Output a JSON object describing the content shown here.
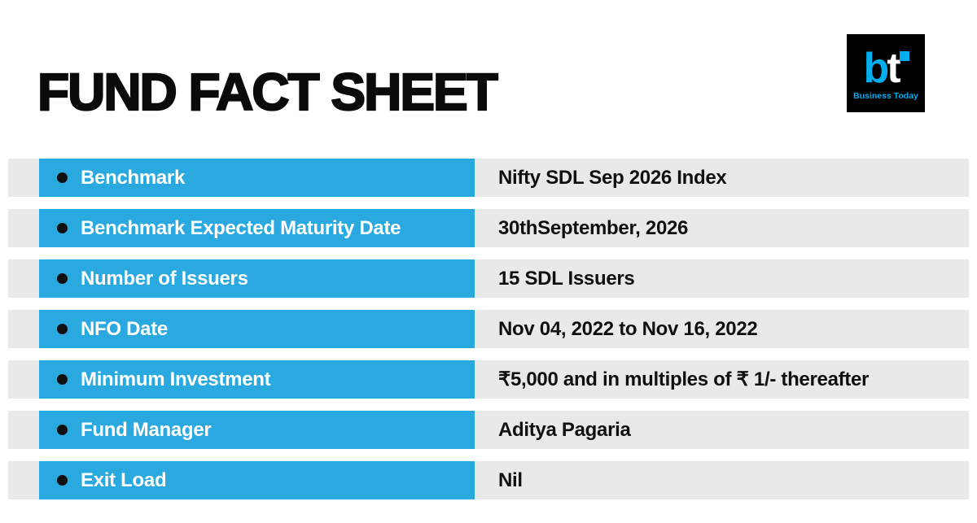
{
  "page": {
    "title": "FUND FACT SHEET"
  },
  "logo": {
    "b": "b",
    "t": "t",
    "subtext": "Business Today"
  },
  "colors": {
    "accent_blue": "#2AA9E0",
    "row_gray": "#E9E9E9",
    "logo_blue": "#00AEEF",
    "logo_background": "#000000",
    "title_black": "#0B0B0B"
  },
  "table": {
    "rows": [
      {
        "label": "Benchmark",
        "value": "Nifty SDL Sep 2026 Index"
      },
      {
        "label": "Benchmark Expected Maturity Date",
        "value": "30thSeptember, 2026"
      },
      {
        "label": "Number of Issuers",
        "value": "15 SDL Issuers"
      },
      {
        "label": "NFO Date",
        "value": "Nov 04, 2022 to Nov 16, 2022"
      },
      {
        "label": "Minimum Investment",
        "value": "₹5,000 and in multiples of ₹ 1/- thereafter"
      },
      {
        "label": "Fund Manager",
        "value": "Aditya Pagaria"
      },
      {
        "label": "Exit Load",
        "value": "Nil"
      }
    ]
  }
}
